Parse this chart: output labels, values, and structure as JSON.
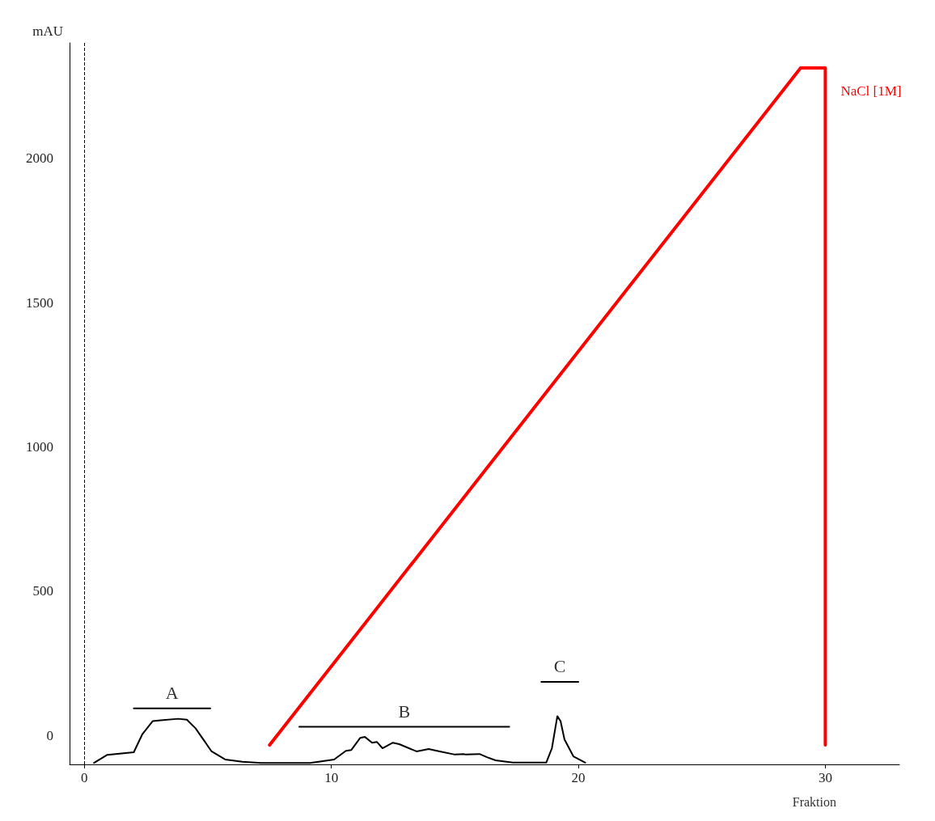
{
  "chart_data": {
    "type": "line",
    "xlabel": "Fraktion",
    "ylabel": "mAU",
    "xlim": [
      -0.6,
      33
    ],
    "ylim": [
      -100,
      2400
    ],
    "xticks": [
      0,
      10,
      20,
      30
    ],
    "yticks": [
      0,
      500,
      1000,
      1500,
      2000
    ],
    "grid": false,
    "legend": false,
    "marker": "none",
    "line_style": "solid",
    "series": [
      {
        "color": "#000000",
        "x": [
          0.39,
          0.93,
          2.0,
          2.35,
          2.77,
          3.09,
          3.8,
          4.15,
          4.5,
          4.86,
          5.15,
          5.7,
          6.4,
          7.15,
          8.0,
          9.14,
          10.11,
          10.59,
          10.81,
          11.17,
          11.36,
          11.65,
          11.84,
          12.07,
          12.49,
          12.75,
          13.45,
          13.94,
          14.39,
          15.0,
          15.35,
          15.45,
          16.0,
          16.3,
          16.65,
          17.35,
          18.7,
          18.93,
          19.15,
          19.28,
          19.44,
          19.8,
          20.28
        ],
        "values": [
          -95,
          -67,
          -58,
          5,
          50,
          53,
          58,
          55,
          25,
          -19,
          -55,
          -83,
          -91,
          -95,
          -95,
          -95,
          -83,
          -53,
          -50,
          -8,
          -5,
          -25,
          -22,
          -44,
          -25,
          -30,
          -55,
          -47,
          -55,
          -66,
          -64,
          -66,
          -64,
          -75,
          -86,
          -94,
          -94,
          -44,
          67,
          50,
          -14,
          -72,
          -94
        ]
      },
      {
        "name": "NaCl [1M]",
        "color": "#ff0000",
        "x": [
          7.5,
          29.0,
          30.0,
          30.0
        ],
        "values": [
          -33,
          2313,
          2313,
          -33
        ]
      },
      {
        "name": "A",
        "color": "#000000",
        "x": [
          2.0,
          5.1
        ],
        "values": [
          94,
          94
        ]
      },
      {
        "name": "B",
        "color": "#000000",
        "x": [
          8.7,
          17.2
        ],
        "values": [
          30,
          30
        ]
      },
      {
        "name": "C",
        "color": "#000000",
        "x": [
          18.5,
          20.0
        ],
        "values": [
          186,
          186
        ]
      }
    ],
    "ref_lines": [
      {
        "axis": "x",
        "value": 0,
        "line_style": "dashed",
        "color": "#000000"
      }
    ]
  }
}
